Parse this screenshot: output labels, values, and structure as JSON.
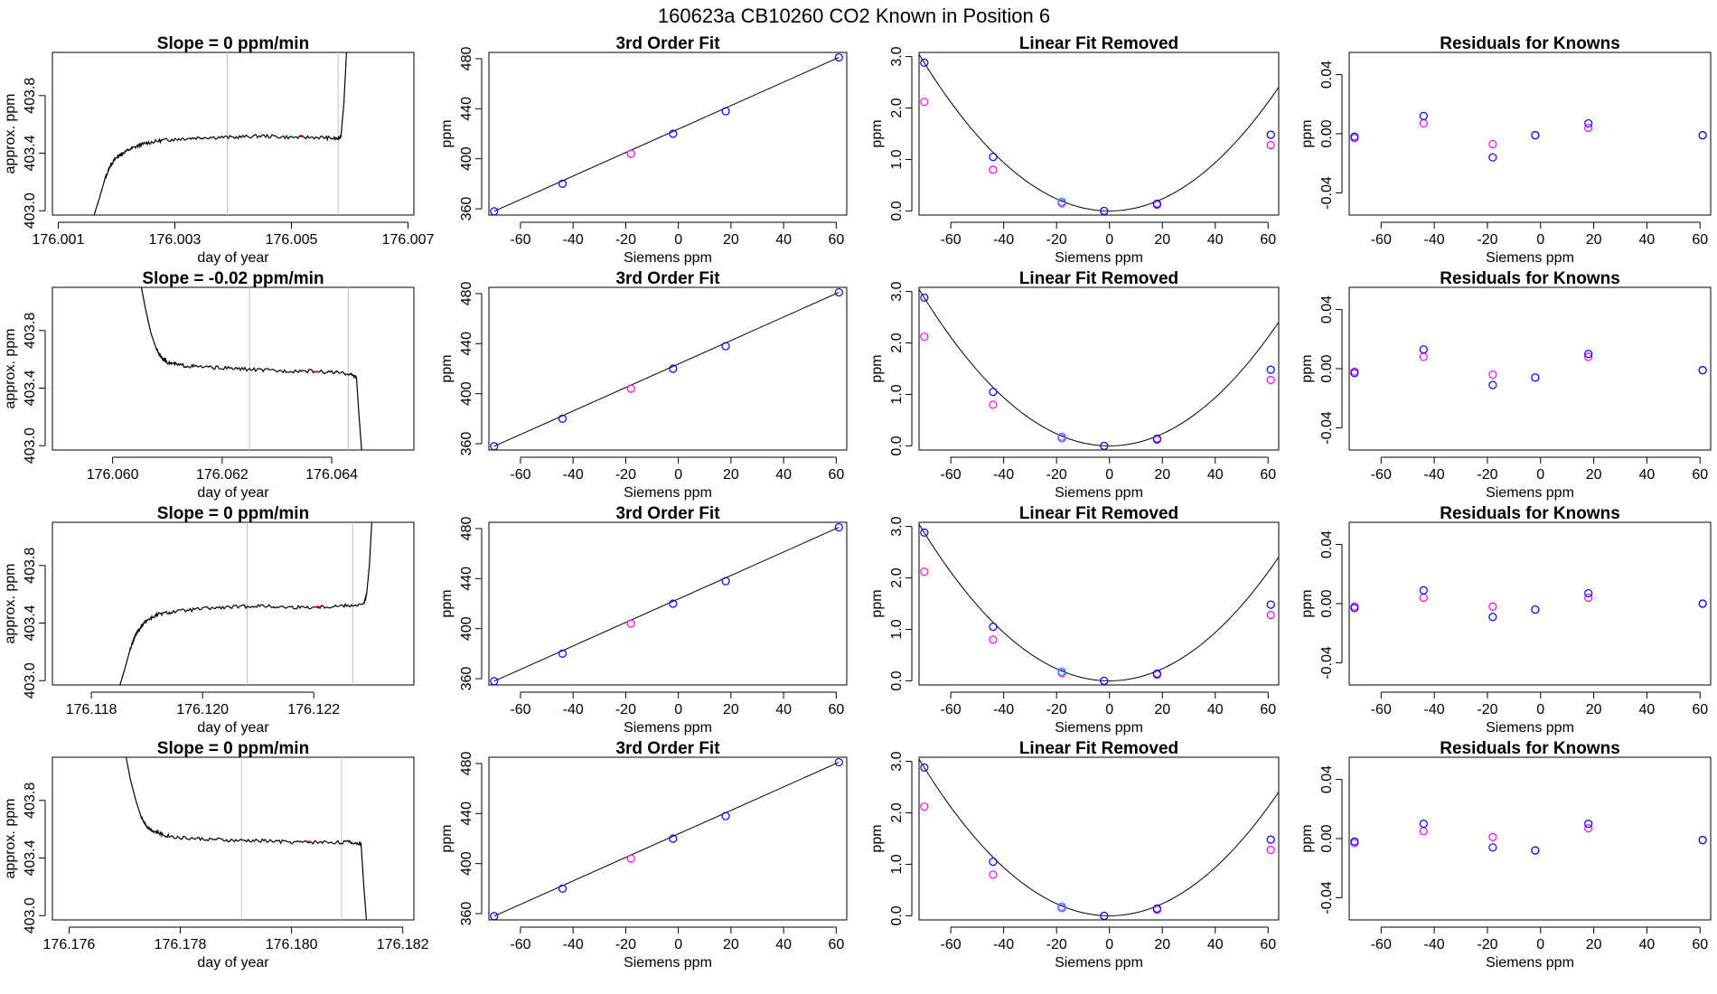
{
  "page": {
    "title": "160623a     CB10260    CO2 Known in Position  6"
  },
  "colors": {
    "outer": "#ff00ff",
    "inner": "#0000ff",
    "mid": "#00a0ff",
    "trace": "#000000",
    "vline": "#bebebe",
    "red": "#ff0000"
  },
  "chart_data": [
    {
      "type": "line",
      "title": "Slope =  0  ppm/min",
      "xlabel": "day of year",
      "ylabel": "approx. ppm",
      "xlim": [
        176.0009,
        176.0071
      ],
      "ylim": [
        402.97,
        404.1
      ],
      "xticks": [
        "176.001",
        "176.003",
        "176.005",
        "176.007"
      ],
      "xtickvals": [
        176.001,
        176.003,
        176.005,
        176.007
      ],
      "yticks": [
        "403.0",
        "403.4",
        "403.8"
      ],
      "ytickvals": [
        403.0,
        403.4,
        403.8
      ],
      "vlines": [
        176.0039,
        176.0058
      ],
      "shape": "rise",
      "x": [
        176.0016,
        176.0017,
        176.0018,
        176.0019,
        176.002,
        176.0021,
        176.0023,
        176.0025,
        176.0028,
        176.0031,
        176.0035,
        176.004,
        176.0045,
        176.005,
        176.0055,
        176.0058,
        176.00585,
        176.0059,
        176.00595
      ],
      "y": [
        402.95,
        403.08,
        403.22,
        403.32,
        403.37,
        403.4,
        403.44,
        403.47,
        403.49,
        403.5,
        403.51,
        403.51,
        403.52,
        403.51,
        403.51,
        403.5,
        403.52,
        403.75,
        404.15
      ]
    },
    {
      "type": "scatter",
      "title": "3rd Order Fit",
      "xlabel": "Siemens ppm",
      "ylabel": "ppm",
      "kind": "fit"
    },
    {
      "type": "scatter",
      "title": "Linear Fit Removed",
      "xlabel": "Siemens ppm",
      "ylabel": "ppm",
      "kind": "lin"
    },
    {
      "type": "scatter",
      "title": "Residuals for Knowns",
      "xlabel": "Siemens ppm",
      "ylabel": "ppm",
      "kind": "res",
      "outer": [
        -0.003,
        0.007,
        -0.007,
        -0.001,
        0.004,
        -0.001
      ],
      "inner": [
        -0.002,
        0.012,
        -0.016,
        -0.001,
        0.007,
        -0.001
      ]
    },
    {
      "type": "line",
      "title": "Slope =  -0.02  ppm/min",
      "xlabel": "day of year",
      "ylabel": "approx. ppm",
      "xlim": [
        176.0589,
        176.0655
      ],
      "ylim": [
        402.97,
        404.1
      ],
      "xticks": [
        "176.060",
        "176.062",
        "176.064"
      ],
      "xtickvals": [
        176.06,
        176.062,
        176.064
      ],
      "vlines": [
        176.0625,
        176.0643
      ],
      "shape": "fall",
      "x": [
        176.0605,
        176.0606,
        176.0607,
        176.0608,
        176.0609,
        176.061,
        176.0612,
        176.0615,
        176.062,
        176.0625,
        176.063,
        176.0635,
        176.064,
        176.0643,
        176.06445,
        176.0645,
        176.06455
      ],
      "y": [
        404.15,
        403.95,
        403.78,
        403.67,
        403.61,
        403.58,
        403.56,
        403.55,
        403.54,
        403.53,
        403.52,
        403.52,
        403.51,
        403.5,
        403.48,
        403.2,
        402.95
      ]
    },
    {
      "type": "scatter",
      "title": "3rd Order Fit",
      "xlabel": "Siemens ppm",
      "ylabel": "ppm",
      "kind": "fit"
    },
    {
      "type": "scatter",
      "title": "Linear Fit Removed",
      "xlabel": "Siemens ppm",
      "ylabel": "ppm",
      "kind": "lin"
    },
    {
      "type": "scatter",
      "title": "Residuals for Knowns",
      "xlabel": "Siemens ppm",
      "ylabel": "ppm",
      "kind": "res",
      "outer": [
        -0.002,
        0.008,
        -0.004,
        -0.006,
        0.008,
        -0.001
      ],
      "inner": [
        -0.003,
        0.013,
        -0.011,
        -0.006,
        0.01,
        -0.001
      ]
    },
    {
      "type": "line",
      "title": "Slope =  0  ppm/min",
      "xlabel": "day of year",
      "ylabel": "approx. ppm",
      "xlim": [
        176.1173,
        176.1238
      ],
      "ylim": [
        402.97,
        404.1
      ],
      "xticks": [
        "176.118",
        "176.120",
        "176.122"
      ],
      "xtickvals": [
        176.118,
        176.12,
        176.122
      ],
      "vlines": [
        176.1208,
        176.1227
      ],
      "shape": "rise",
      "x": [
        176.1185,
        176.1186,
        176.1187,
        176.1188,
        176.1189,
        176.119,
        176.1192,
        176.1195,
        176.12,
        176.1205,
        176.121,
        176.1215,
        176.122,
        176.1225,
        176.1229,
        176.12295,
        176.123,
        176.12305
      ],
      "y": [
        402.95,
        403.08,
        403.22,
        403.32,
        403.38,
        403.42,
        403.46,
        403.48,
        403.5,
        403.51,
        403.52,
        403.51,
        403.51,
        403.52,
        403.53,
        403.6,
        403.8,
        404.15
      ]
    },
    {
      "type": "scatter",
      "title": "3rd Order Fit",
      "xlabel": "Siemens ppm",
      "ylabel": "ppm",
      "kind": "fit"
    },
    {
      "type": "scatter",
      "title": "Linear Fit Removed",
      "xlabel": "Siemens ppm",
      "ylabel": "ppm",
      "kind": "lin"
    },
    {
      "type": "scatter",
      "title": "Residuals for Knowns",
      "xlabel": "Siemens ppm",
      "ylabel": "ppm",
      "kind": "res",
      "outer": [
        -0.002,
        0.004,
        -0.002,
        -0.004,
        0.004,
        0.0
      ],
      "inner": [
        -0.003,
        0.009,
        -0.009,
        -0.004,
        0.007,
        0.0
      ]
    },
    {
      "type": "line",
      "title": "Slope =  0  ppm/min",
      "xlabel": "day of year",
      "ylabel": "approx. ppm",
      "xlim": [
        176.1757,
        176.1822
      ],
      "ylim": [
        402.97,
        404.1
      ],
      "xticks": [
        "176.176",
        "176.178",
        "176.180",
        "176.182"
      ],
      "xtickvals": [
        176.176,
        176.178,
        176.18,
        176.182
      ],
      "vlines": [
        176.1791,
        176.1809
      ],
      "shape": "fall",
      "x": [
        176.177,
        176.1771,
        176.1772,
        176.1773,
        176.1774,
        176.1775,
        176.1777,
        176.178,
        176.1785,
        176.179,
        176.1795,
        176.18,
        176.1805,
        176.181,
        176.18125,
        176.1813,
        176.18135
      ],
      "y": [
        404.15,
        403.95,
        403.8,
        403.68,
        403.62,
        403.59,
        403.56,
        403.54,
        403.53,
        403.52,
        403.52,
        403.51,
        403.51,
        403.51,
        403.5,
        403.2,
        402.95
      ]
    },
    {
      "type": "scatter",
      "title": "3rd Order Fit",
      "xlabel": "Siemens ppm",
      "ylabel": "ppm",
      "kind": "fit"
    },
    {
      "type": "scatter",
      "title": "Linear Fit Removed",
      "xlabel": "Siemens ppm",
      "ylabel": "ppm",
      "kind": "lin"
    },
    {
      "type": "scatter",
      "title": "Residuals for Knowns",
      "xlabel": "Siemens ppm",
      "ylabel": "ppm",
      "kind": "res",
      "outer": [
        -0.003,
        0.005,
        0.001,
        -0.008,
        0.007,
        -0.001
      ],
      "inner": [
        -0.002,
        0.01,
        -0.006,
        -0.008,
        0.01,
        -0.001
      ]
    }
  ],
  "common": {
    "siemens_x": [
      -70,
      -44,
      -18,
      -2,
      18,
      61
    ],
    "x_xlim": [
      -72,
      64
    ],
    "x_xticks": [
      -60,
      -40,
      -20,
      0,
      20,
      40,
      60
    ],
    "fit_ylim": [
      355,
      485
    ],
    "fit_yticks": [
      360,
      400,
      440,
      480
    ],
    "fit_inner": [
      358,
      380,
      404,
      420,
      438,
      481
    ],
    "fit_highlight_index": 2,
    "lin_ylim": [
      -0.08,
      3.08
    ],
    "lin_yticks": [
      "0.0",
      "1.0",
      "2.0",
      "3.0"
    ],
    "lin_ytickvals": [
      0,
      1,
      2,
      3
    ],
    "lin_outer": [
      2.12,
      0.8,
      0.15,
      0.0,
      0.12,
      1.28
    ],
    "lin_inner": [
      2.88,
      1.05,
      0.18,
      0.0,
      0.14,
      1.48
    ],
    "lin_curve_a": 0.000587,
    "lin_curve_b": 0.0,
    "res_ylim": [
      -0.055,
      0.055
    ],
    "res_yticks": [
      "-0.04",
      "0.00",
      "0.04"
    ],
    "res_ytickvals": [
      -0.04,
      0.0,
      0.04
    ]
  }
}
